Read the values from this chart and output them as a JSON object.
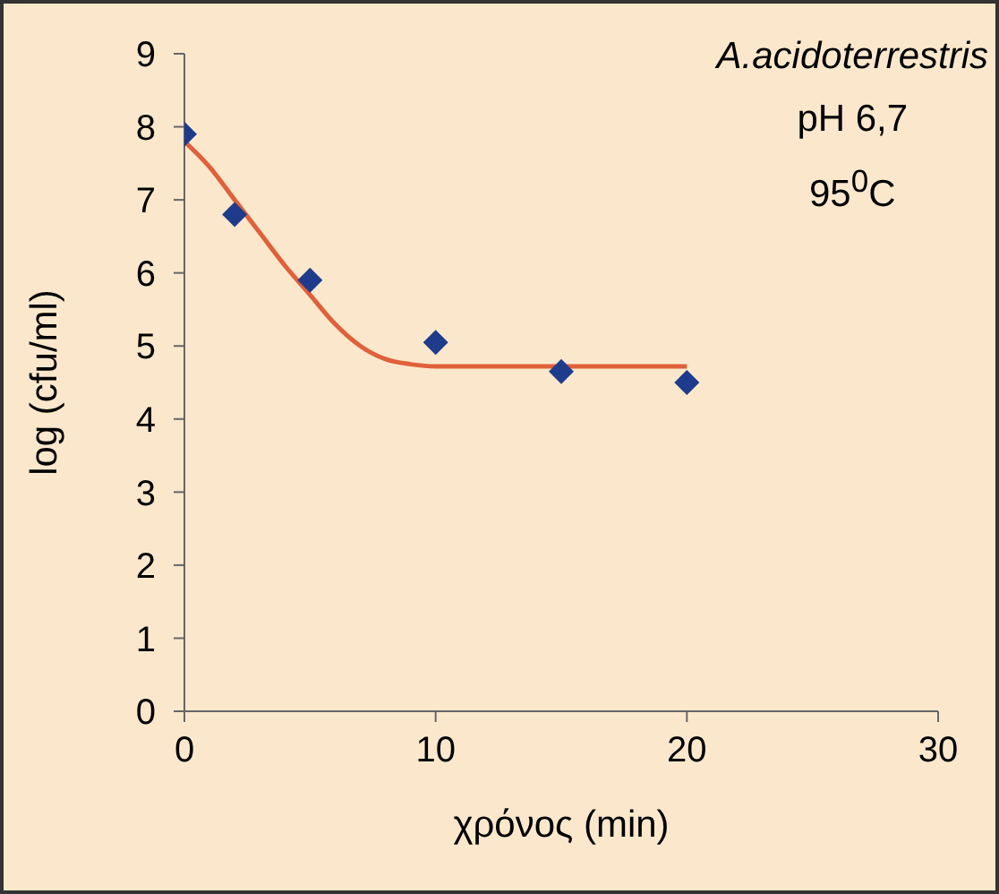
{
  "chart_data": {
    "type": "scatter",
    "xlabel": "χρόνος (min)",
    "ylabel": "log (cfu/ml)",
    "annotations": [
      "A.acidoterrestris",
      "pH 6,7",
      "95$^{0}$C"
    ],
    "xlim": [
      0,
      30
    ],
    "xticks": [
      0,
      10,
      20,
      30
    ],
    "ylim": [
      0,
      9
    ],
    "yticks": [
      0,
      1,
      2,
      3,
      4,
      5,
      6,
      7,
      8,
      9
    ],
    "grid": false,
    "series": [
      {
        "type": "scatter",
        "color": "#1f3c8c",
        "marker": "diamond",
        "x": [
          0,
          2,
          5,
          10,
          15,
          20
        ],
        "values": [
          7.9,
          6.8,
          5.9,
          5.05,
          4.65,
          4.5
        ]
      },
      {
        "type": "line",
        "color": "#e0603a",
        "marker": "none",
        "line_style": "solid",
        "x": [
          0,
          1,
          2,
          3,
          4,
          5,
          6,
          7,
          8,
          9,
          10,
          12,
          15,
          20
        ],
        "values": [
          7.8,
          7.45,
          7.0,
          6.55,
          6.1,
          5.7,
          5.3,
          5.0,
          4.82,
          4.75,
          4.72,
          4.72,
          4.72,
          4.72
        ]
      }
    ]
  }
}
